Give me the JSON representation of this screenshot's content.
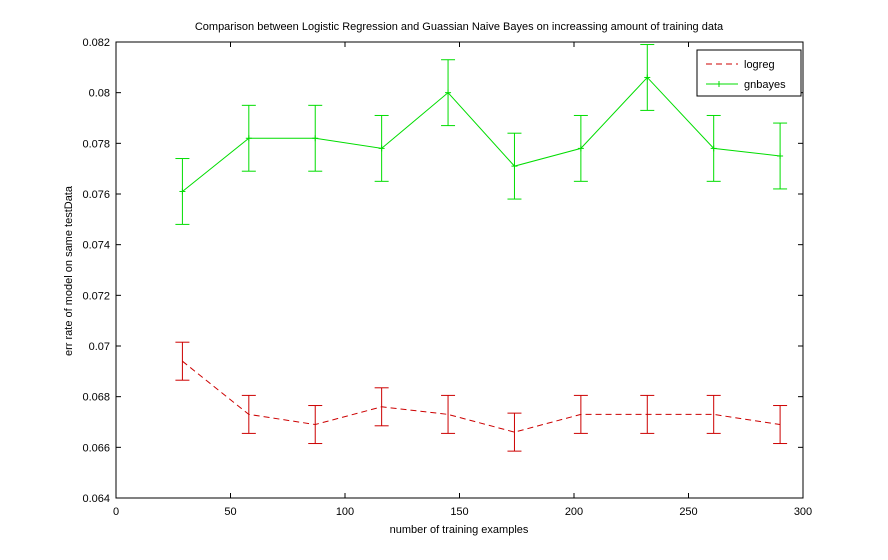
{
  "chart_data": {
    "type": "line",
    "title": "Comparison between Logistic Regression and Guassian Naive Bayes on increassing amount of training data",
    "xlabel": "number of training examples",
    "ylabel": "err rate of model on same testData",
    "xlim": [
      0,
      300
    ],
    "ylim": [
      0.064,
      0.082
    ],
    "xticks": [
      0,
      50,
      100,
      150,
      200,
      250,
      300
    ],
    "xtick_labels": [
      "0",
      "50",
      "100",
      "150",
      "200",
      "250",
      "300"
    ],
    "yticks": [
      0.064,
      0.066,
      0.068,
      0.07,
      0.072,
      0.074,
      0.076,
      0.078,
      0.08,
      0.082
    ],
    "ytick_labels": [
      "0.064",
      "0.066",
      "0.068",
      "0.07",
      "0.072",
      "0.074",
      "0.076",
      "0.078",
      "0.08",
      "0.082"
    ],
    "grid": false,
    "legend_position": "top-right",
    "x": [
      29,
      58,
      87,
      116,
      145,
      174,
      203,
      232,
      261,
      290
    ],
    "series": [
      {
        "name": "logreg",
        "color": "#cc0000",
        "line_style": "dashed",
        "marker": "none",
        "values": [
          0.0694,
          0.0673,
          0.0669,
          0.0676,
          0.0673,
          0.0666,
          0.0673,
          0.0673,
          0.0673,
          0.0669
        ],
        "errors": [
          0.00075,
          0.00075,
          0.00075,
          0.00075,
          0.00075,
          0.00075,
          0.00075,
          0.00075,
          0.00075,
          0.00075
        ]
      },
      {
        "name": "gnbayes",
        "color": "#00dd00",
        "line_style": "solid",
        "marker": "plus",
        "values": [
          0.0761,
          0.0782,
          0.0782,
          0.0778,
          0.08,
          0.0771,
          0.0778,
          0.0806,
          0.0778,
          0.0775
        ],
        "errors": [
          0.0013,
          0.0013,
          0.0013,
          0.0013,
          0.0013,
          0.0013,
          0.0013,
          0.0013,
          0.0013,
          0.0013
        ]
      }
    ]
  }
}
